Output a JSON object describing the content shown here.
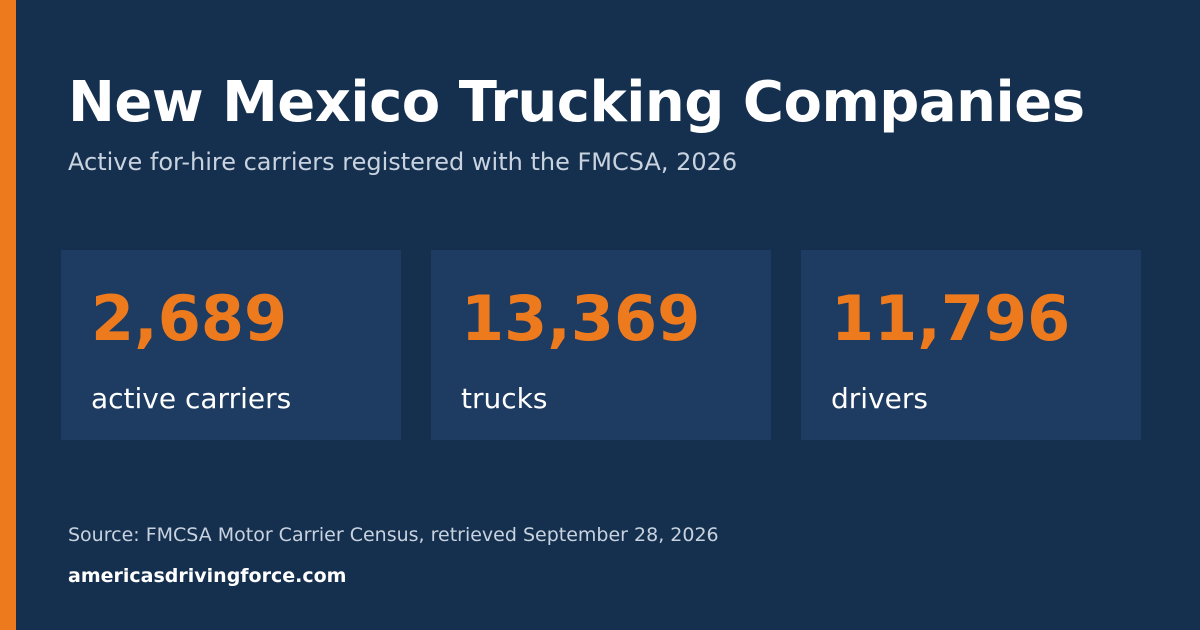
{
  "header": {
    "title": "New Mexico Trucking Companies",
    "subtitle": "Active for-hire carriers registered with the FMCSA, 2026"
  },
  "stats": [
    {
      "value": "2,689",
      "label": "active carriers"
    },
    {
      "value": "13,369",
      "label": "trucks"
    },
    {
      "value": "11,796",
      "label": "drivers"
    }
  ],
  "footer": {
    "source": "Source: FMCSA Motor Carrier Census, retrieved September 28, 2026",
    "site": "americasdrivingforce.com"
  }
}
